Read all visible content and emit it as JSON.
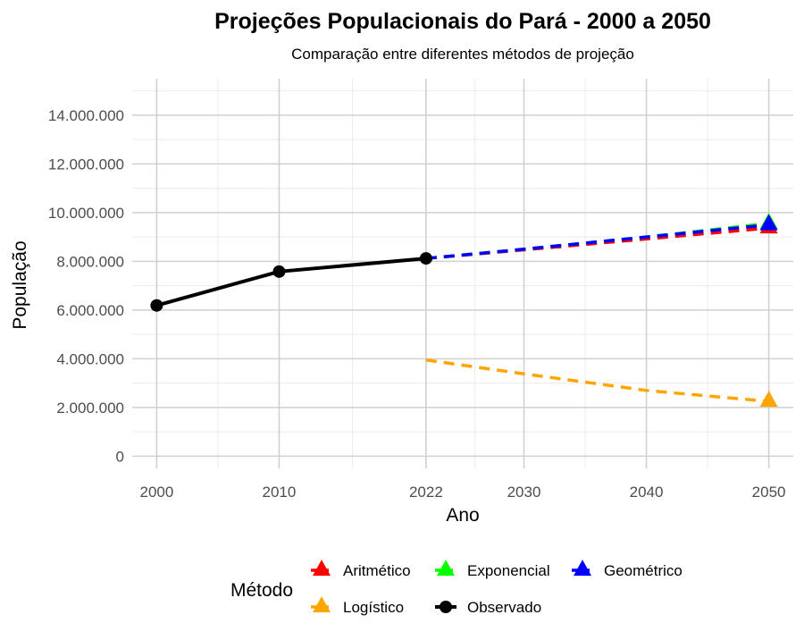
{
  "chart_data": {
    "type": "line",
    "title": "Projeções Populacionais do Pará - 2000 a 2050",
    "subtitle": "Comparação entre diferentes métodos de projeção",
    "xlabel": "Ano",
    "ylabel": "População",
    "xlim": [
      1998,
      2052
    ],
    "ylim": [
      -500000,
      15500000
    ],
    "x_ticks": [
      2000,
      2010,
      2022,
      2030,
      2040,
      2050
    ],
    "y_ticks": [
      0,
      2000000,
      4000000,
      6000000,
      8000000,
      10000000,
      12000000,
      14000000
    ],
    "y_tick_labels": [
      "0",
      "2.000.000",
      "4.000.000",
      "6.000.000",
      "8.000.000",
      "10.000.000",
      "12.000.000",
      "14.000.000"
    ],
    "grid": true,
    "legend": {
      "title": "Método",
      "position": "bottom",
      "entries": [
        "Aritmético",
        "Exponencial",
        "Geométrico",
        "Logístico",
        "Observado"
      ]
    },
    "series": [
      {
        "name": "Observado",
        "color": "#000000",
        "style": "solid",
        "marker": "circle",
        "x": [
          2000,
          2010,
          2022
        ],
        "y": [
          6190000,
          7580000,
          8120000
        ]
      },
      {
        "name": "Aritmético",
        "color": "#ff0000",
        "style": "dashed",
        "marker": "triangle",
        "x": [
          2022,
          2030,
          2040,
          2050
        ],
        "y": [
          8120000,
          8470000,
          8920000,
          9370000
        ]
      },
      {
        "name": "Exponencial",
        "color": "#00ff00",
        "style": "dashed",
        "marker": "triangle",
        "x": [
          2022,
          2030,
          2040,
          2050
        ],
        "y": [
          8120000,
          8500000,
          9000000,
          9560000
        ]
      },
      {
        "name": "Geométrico",
        "color": "#0000ff",
        "style": "dashed",
        "marker": "triangle",
        "x": [
          2022,
          2030,
          2040,
          2050
        ],
        "y": [
          8120000,
          8500000,
          9000000,
          9500000
        ]
      },
      {
        "name": "Logístico",
        "color": "#ffa500",
        "style": "dashed",
        "marker": "triangle",
        "x": [
          2022,
          2030,
          2040,
          2050
        ],
        "y": [
          3950000,
          3380000,
          2700000,
          2250000
        ]
      }
    ]
  }
}
